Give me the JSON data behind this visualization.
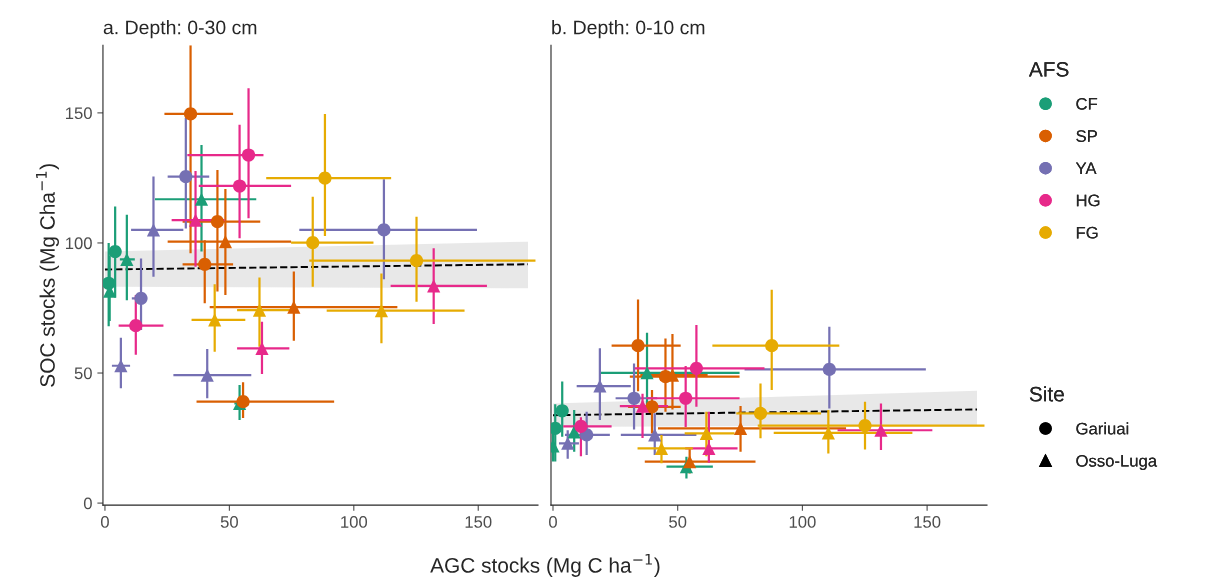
{
  "chart_data": [
    {
      "type": "scatter",
      "title": "a. Depth: 0-30 cm",
      "xlabel": "AGC stocks (Mg C ha$^{−1}$)",
      "ylabel": "SOC stocks (Mg Cha$^{−1}$)",
      "xlim": [
        -0.8,
        174
      ],
      "ylim": [
        -0.8,
        176
      ],
      "xticks": [
        0,
        50,
        100,
        150
      ],
      "yticks": [
        0,
        50,
        100,
        150
      ],
      "grid": false,
      "legend": "right",
      "legend_title": [
        "AFS",
        "Site"
      ],
      "series": [
        {
          "type": "line",
          "color": "#000000",
          "line_style": "dashed",
          "x": [
            0,
            170
          ],
          "values": [
            89.8,
            91.8
          ],
          "lower": [
            83.2,
            82.6
          ],
          "upper": [
            96.7,
            100.5
          ]
        },
        {
          "name": "CF",
          "marker": "circle",
          "color": "#1b9e77",
          "x": [
            1.5,
            4.1
          ],
          "values": [
            84.5,
            96.7
          ],
          "errors": [
            [
              68,
              100
            ],
            [
              79,
              114
            ]
          ],
          "xerrors": [
            null,
            [
              2,
              6
            ]
          ]
        },
        {
          "marker": "triangle",
          "color": "#1b9e77",
          "x": [
            1.9,
            8.8,
            38.8,
            54.1
          ],
          "values": [
            81.5,
            93.7,
            116.8,
            38.3
          ],
          "errors": [
            [
              70,
              95
            ],
            [
              78,
              110.8
            ],
            [
              96.7,
              137.7
            ],
            [
              31.9,
              45.4
            ]
          ],
          "xerrors": [
            null,
            [
              6,
              12
            ],
            [
              20.1,
              60.8
            ],
            [
              52,
              56
            ]
          ]
        },
        {
          "name": "SP",
          "marker": "circle",
          "color": "#d95f02",
          "x": [
            34.4,
            45.2,
            40.1,
            55.5
          ],
          "values": [
            149.6,
            108.2,
            91.8,
            39
          ],
          "errors": [
            [
              96,
              176
            ],
            [
              81.3,
              128
            ],
            [
              76.8,
              101
            ],
            [
              32.7,
              46.5
            ]
          ],
          "xerrors": [
            [
              23.9,
              51.5
            ],
            [
              31.2,
              62.4
            ],
            [
              31.2,
              51.5
            ],
            [
              36.8,
              92.1
            ]
          ]
        },
        {
          "marker": "triangle",
          "color": "#d95f02",
          "x": [
            48.4,
            75.9
          ],
          "values": [
            100.5,
            75.3
          ],
          "errors": [
            [
              80,
              120.7
            ],
            [
              62.4,
              89
            ]
          ],
          "xerrors": [
            [
              25.2,
              74.8
            ],
            [
              42.1,
              117.5
            ]
          ]
        },
        {
          "name": "YA",
          "marker": "circle",
          "color": "#7570b3",
          "x": [
            32.5,
            112.1,
            14.5
          ],
          "values": [
            125.5,
            105,
            78.7
          ],
          "errors": [
            [
              105.6,
              148
            ],
            [
              86,
              124.5
            ],
            [
              66.5,
              94
            ]
          ],
          "xerrors": [
            [
              25.2,
              41.9
            ],
            [
              78.1,
              149.5
            ],
            [
              10.8,
              16.8
            ]
          ]
        },
        {
          "marker": "triangle",
          "color": "#7570b3",
          "x": [
            19.5,
            6.4,
            41.1
          ],
          "values": [
            105,
            52.8,
            49.2
          ],
          "errors": [
            [
              87,
              125.5
            ],
            [
              44.1,
              63.6
            ],
            [
              40.3,
              59.2
            ]
          ],
          "xerrors": [
            [
              10.5,
              31.5
            ],
            [
              2.8,
              10.1
            ],
            [
              27.5,
              58.8
            ]
          ]
        },
        {
          "name": "HG",
          "marker": "circle",
          "color": "#e7298a",
          "x": [
            57.7,
            54.1,
            12.4
          ],
          "values": [
            133.8,
            121.9,
            68.2
          ],
          "errors": [
            [
              109.5,
              159.5
            ],
            [
              101.8,
              145.4
            ],
            [
              57,
              80
            ]
          ],
          "xerrors": [
            [
              33.1,
              63.7
            ],
            [
              37.7,
              74.8
            ],
            [
              5.5,
              23.5
            ]
          ]
        },
        {
          "marker": "triangle",
          "color": "#e7298a",
          "x": [
            36.4,
            63.1,
            132.1
          ],
          "values": [
            108.8,
            59.5,
            83.5
          ],
          "errors": [
            [
              90.9,
              127.7
            ],
            [
              49.6,
              69.7
            ],
            [
              68.8,
              98
            ]
          ],
          "xerrors": [
            [
              26.8,
              48.1
            ],
            [
              53.1,
              74.1
            ],
            [
              114.8,
              153.5
            ]
          ]
        },
        {
          "name": "FG",
          "marker": "circle",
          "color": "#e6ab02",
          "x": [
            88.4,
            83.5,
            125.2
          ],
          "values": [
            124.9,
            100.1,
            93.2
          ],
          "errors": [
            [
              102.7,
              149.6
            ],
            [
              83.2,
              117.8
            ],
            [
              77.4,
              110.1
            ]
          ],
          "xerrors": [
            [
              64.8,
              115
            ],
            [
              74.8,
              107.9
            ],
            [
              82.1,
              173
            ]
          ]
        },
        {
          "marker": "triangle",
          "color": "#e6ab02",
          "x": [
            44.1,
            62.1,
            111.1
          ],
          "values": [
            70.4,
            74.2,
            74
          ],
          "errors": [
            [
              58.2,
              84.1
            ],
            [
              60.1,
              86.7
            ],
            [
              61.4,
              88.3
            ]
          ],
          "xerrors": [
            [
              34.8,
              56.4
            ],
            [
              53.1,
              76.1
            ],
            [
              89.1,
              144.5
            ]
          ]
        },
        {
          "name": "Gariuai",
          "marker": "circle",
          "color": "#000000"
        },
        {
          "name": "Osso-Luga",
          "marker": "triangle",
          "color": "#000000"
        }
      ]
    },
    {
      "type": "scatter",
      "title": "b. Depth: 0-10 cm",
      "xlim": [
        -0.8,
        174
      ],
      "ylim": [
        -0.8,
        176
      ],
      "xticks": [
        0,
        50,
        100,
        150
      ],
      "tick_labels": "x",
      "grid": false,
      "series": [
        {
          "type": "line",
          "color": "#000000",
          "line_style": "dashed",
          "x": [
            0,
            170
          ],
          "values": [
            33.8,
            36
          ],
          "lower": [
            29.3,
            30
          ],
          "upper": [
            38.3,
            43.2
          ]
        },
        {
          "marker": "circle",
          "color": "#1b9e77",
          "x": [
            0.9,
            3.7
          ],
          "values": [
            28.7,
            35.5
          ],
          "errors": [
            [
              16,
              38
            ],
            [
              25.5,
              46.7
            ]
          ],
          "xerrors": [
            null,
            [
              2,
              6
            ]
          ]
        },
        {
          "marker": "triangle",
          "color": "#1b9e77",
          "x": [
            0,
            8.5,
            37.7,
            53.5
          ],
          "values": [
            22,
            27.4,
            50.1,
            14
          ],
          "errors": [
            [
              16,
              30
            ],
            [
              19.7,
              35.8
            ],
            [
              37,
              65.5
            ],
            [
              9.5,
              17.8
            ]
          ],
          "xerrors": [
            null,
            null,
            [
              18.8,
              74.8
            ],
            [
              45.5,
              64.1
            ]
          ]
        },
        {
          "marker": "circle",
          "color": "#d95f02",
          "x": [
            34.1,
            45.1,
            39.7
          ],
          "values": [
            60.5,
            48.6,
            37
          ],
          "errors": [
            [
              43,
              78.3
            ],
            [
              35.1,
              63.3
            ],
            [
              26.8,
              43.5
            ]
          ],
          "xerrors": [
            [
              23.5,
              51.2
            ],
            [
              30.8,
              74.8
            ],
            [
              30.1,
              51.2
            ]
          ]
        },
        {
          "marker": "triangle",
          "color": "#d95f02",
          "x": [
            47.9,
            75.2,
            54.8
          ],
          "values": [
            49.2,
            28.7,
            15.9
          ],
          "errors": [
            [
              36,
              65
            ],
            [
              19.7,
              37.3
            ],
            [
              11.4,
              21
            ]
          ],
          "xerrors": [
            [
              35,
              62
            ],
            [
              42.1,
              117.5
            ],
            [
              36.8,
              81.2
            ]
          ]
        },
        {
          "marker": "circle",
          "color": "#7570b3",
          "x": [
            32.5,
            110.8,
            13.5
          ],
          "values": [
            40.3,
            51.4,
            26.2
          ],
          "errors": [
            [
              28.3,
              53.7
            ],
            [
              36.4,
              67.8
            ],
            [
              18.5,
              35.1
            ]
          ],
          "xerrors": [
            [
              25.1,
              41.8
            ],
            [
              76.8,
              149.5
            ],
            [
              4.8,
              22.8
            ]
          ]
        },
        {
          "marker": "triangle",
          "color": "#7570b3",
          "x": [
            18.8,
            5.9,
            40.8
          ],
          "values": [
            45,
            23,
            26.2
          ],
          "errors": [
            [
              31.9,
              59.5
            ],
            [
              17,
              28
            ],
            [
              18.5,
              34.5
            ]
          ],
          "xerrors": [
            [
              9.5,
              31.2
            ],
            [
              2.4,
              10.4
            ],
            [
              27.2,
              57.5
            ]
          ]
        },
        {
          "marker": "circle",
          "color": "#e7298a",
          "x": [
            57.5,
            53.2,
            11.2
          ],
          "values": [
            51.8,
            40.3,
            29.5
          ],
          "errors": [
            [
              37,
              68.5
            ],
            [
              29.3,
              52.7
            ],
            [
              18,
              33
            ]
          ],
          "xerrors": [
            [
              32.8,
              84.8
            ],
            [
              37.5,
              74.8
            ],
            [
              4.1,
              23.5
            ]
          ]
        },
        {
          "marker": "triangle",
          "color": "#e7298a",
          "x": [
            35.9,
            62.5,
            131.5
          ],
          "values": [
            37.3,
            21,
            28
          ],
          "errors": [
            [
              25,
              42
            ],
            [
              15.5,
              35.1
            ],
            [
              20.4,
              38.3
            ]
          ],
          "xerrors": [
            [
              26.8,
              46.1
            ],
            [
              53,
              74
            ],
            [
              114.1,
              152.1
            ]
          ]
        },
        {
          "marker": "circle",
          "color": "#e6ab02",
          "x": [
            87.7,
            83.2,
            125.1
          ],
          "values": [
            60.5,
            34.5,
            29.8
          ],
          "errors": [
            [
              43.5,
              82
            ],
            [
              24.9,
              46
            ],
            [
              20.6,
              39
            ]
          ],
          "xerrors": [
            [
              63.9,
              114.8
            ],
            [
              73.5,
              107.5
            ],
            [
              82.1,
              173
            ]
          ]
        },
        {
          "marker": "triangle",
          "color": "#e6ab02",
          "x": [
            43.5,
            61.5,
            110.4
          ],
          "values": [
            21,
            26.8,
            27
          ],
          "errors": [
            [
              15.3,
              26.2
            ],
            [
              18,
              35.1
            ],
            [
              19.1,
              35.8
            ]
          ],
          "xerrors": [
            [
              33.9,
              56.1
            ],
            [
              52.8,
              72.8
            ],
            [
              88.5,
              144.1
            ]
          ]
        }
      ]
    }
  ]
}
